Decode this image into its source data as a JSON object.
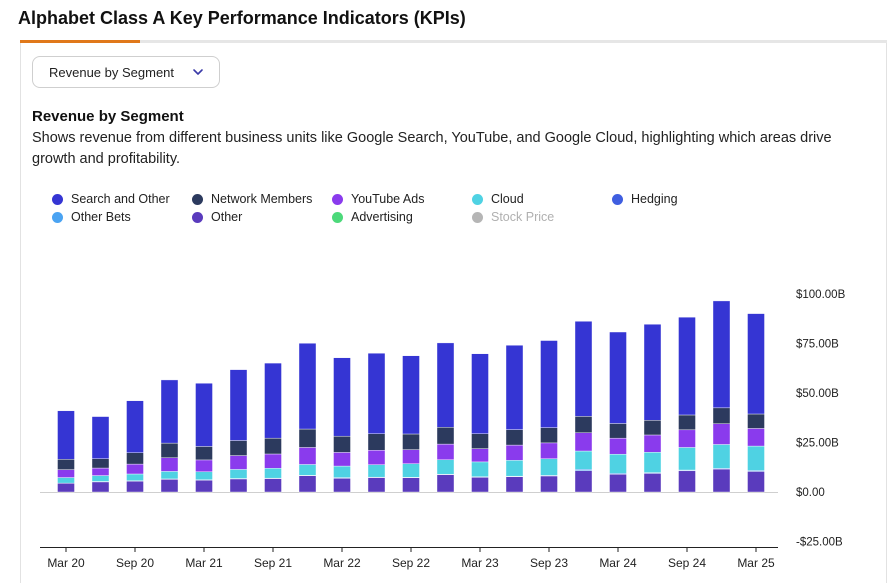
{
  "page": {
    "title": "Alphabet Class A Key Performance Indicators (KPIs)"
  },
  "selector": {
    "label": "Revenue by Segment"
  },
  "section": {
    "title": "Revenue by Segment",
    "description": "Shows revenue from different business units like Google Search, YouTube, and Google Cloud, highlighting which areas drive growth and profitability."
  },
  "colors": {
    "accent_tab": "#e0781a",
    "search_and_other": "#3535d3",
    "network_members": "#2c3a5e",
    "youtube_ads": "#8a3bed",
    "cloud": "#4fd2e3",
    "hedging": "#3f5ee0",
    "other_bets": "#4aa3f2",
    "other": "#5a3bbd",
    "advertising": "#4cd97a",
    "stock_price": "#b5b5b5"
  },
  "chart_data": {
    "type": "bar",
    "stacked": true,
    "categories": [
      "Mar 20",
      "Jun 20",
      "Sep 20",
      "Dec 20",
      "Mar 21",
      "Jun 21",
      "Sep 21",
      "Dec 21",
      "Mar 22",
      "Jun 22",
      "Sep 22",
      "Dec 22",
      "Mar 23",
      "Jun 23",
      "Sep 23",
      "Dec 23",
      "Mar 24",
      "Jun 24",
      "Sep 24",
      "Dec 24",
      "Mar 25"
    ],
    "tick_labels": [
      "Mar 20",
      "Sep 20",
      "Mar 21",
      "Sep 21",
      "Mar 22",
      "Sep 22",
      "Mar 23",
      "Sep 23",
      "Mar 24",
      "Sep 24",
      "Mar 25"
    ],
    "series": [
      {
        "name": "Other",
        "key": "other",
        "values": [
          4.4,
          5.1,
          5.5,
          6.4,
          6.0,
          6.6,
          6.8,
          8.2,
          6.9,
          7.3,
          7.2,
          8.8,
          7.4,
          7.7,
          8.1,
          10.8,
          9.0,
          9.4,
          10.7,
          11.6,
          10.4
        ]
      },
      {
        "name": "Other Bets",
        "key": "other_bets",
        "values": [
          0.1,
          0.2,
          0.2,
          0.2,
          0.2,
          0.2,
          0.2,
          0.2,
          0.4,
          0.2,
          0.2,
          0.2,
          0.3,
          0.3,
          0.3,
          0.7,
          0.5,
          0.4,
          0.4,
          0.4,
          0.5
        ]
      },
      {
        "name": "Cloud",
        "key": "cloud",
        "values": [
          2.8,
          3.0,
          3.4,
          3.8,
          4.0,
          4.6,
          5.0,
          5.5,
          5.8,
          6.3,
          6.9,
          7.3,
          7.5,
          8.0,
          8.4,
          9.2,
          9.6,
          10.3,
          11.4,
          12.0,
          12.3
        ]
      },
      {
        "name": "YouTube Ads",
        "key": "youtube_ads",
        "values": [
          4.0,
          3.8,
          5.0,
          6.9,
          6.0,
          7.0,
          7.2,
          8.6,
          6.9,
          7.3,
          7.1,
          7.9,
          6.7,
          7.7,
          8.0,
          9.2,
          8.1,
          8.7,
          8.9,
          10.5,
          8.9
        ]
      },
      {
        "name": "Network Members",
        "key": "network_members",
        "values": [
          5.2,
          4.7,
          5.7,
          7.4,
          6.8,
          7.6,
          8.0,
          9.3,
          8.2,
          8.3,
          7.9,
          8.5,
          7.5,
          7.8,
          7.7,
          8.3,
          7.4,
          7.4,
          7.5,
          8.0,
          7.3
        ]
      },
      {
        "name": "Search and Other",
        "key": "search_and_other",
        "values": [
          24.5,
          21.3,
          26.3,
          31.9,
          31.9,
          35.8,
          37.9,
          43.3,
          39.6,
          40.7,
          39.5,
          42.6,
          40.4,
          42.6,
          44.0,
          48.0,
          46.2,
          48.5,
          49.4,
          54.0,
          50.7
        ]
      }
    ],
    "legend": [
      {
        "name": "Search and Other",
        "key": "search_and_other",
        "enabled": true
      },
      {
        "name": "Network Members",
        "key": "network_members",
        "enabled": true
      },
      {
        "name": "YouTube Ads",
        "key": "youtube_ads",
        "enabled": true
      },
      {
        "name": "Cloud",
        "key": "cloud",
        "enabled": true
      },
      {
        "name": "Hedging",
        "key": "hedging",
        "enabled": true
      },
      {
        "name": "Other Bets",
        "key": "other_bets",
        "enabled": true
      },
      {
        "name": "Other",
        "key": "other",
        "enabled": true
      },
      {
        "name": "Advertising",
        "key": "advertising",
        "enabled": true
      },
      {
        "name": "Stock Price",
        "key": "stock_price",
        "enabled": false
      }
    ],
    "y_axis": {
      "ticks": [
        100,
        75,
        50,
        25,
        0,
        -25
      ],
      "tick_labels": [
        "$100.00B",
        "$75.00B",
        "$50.00B",
        "$25.00B",
        "$0.00",
        "-$25.00B"
      ],
      "ylim": [
        -25,
        100
      ],
      "position": "right"
    },
    "title": "Revenue by Segment",
    "xlabel": "",
    "ylabel": ""
  }
}
